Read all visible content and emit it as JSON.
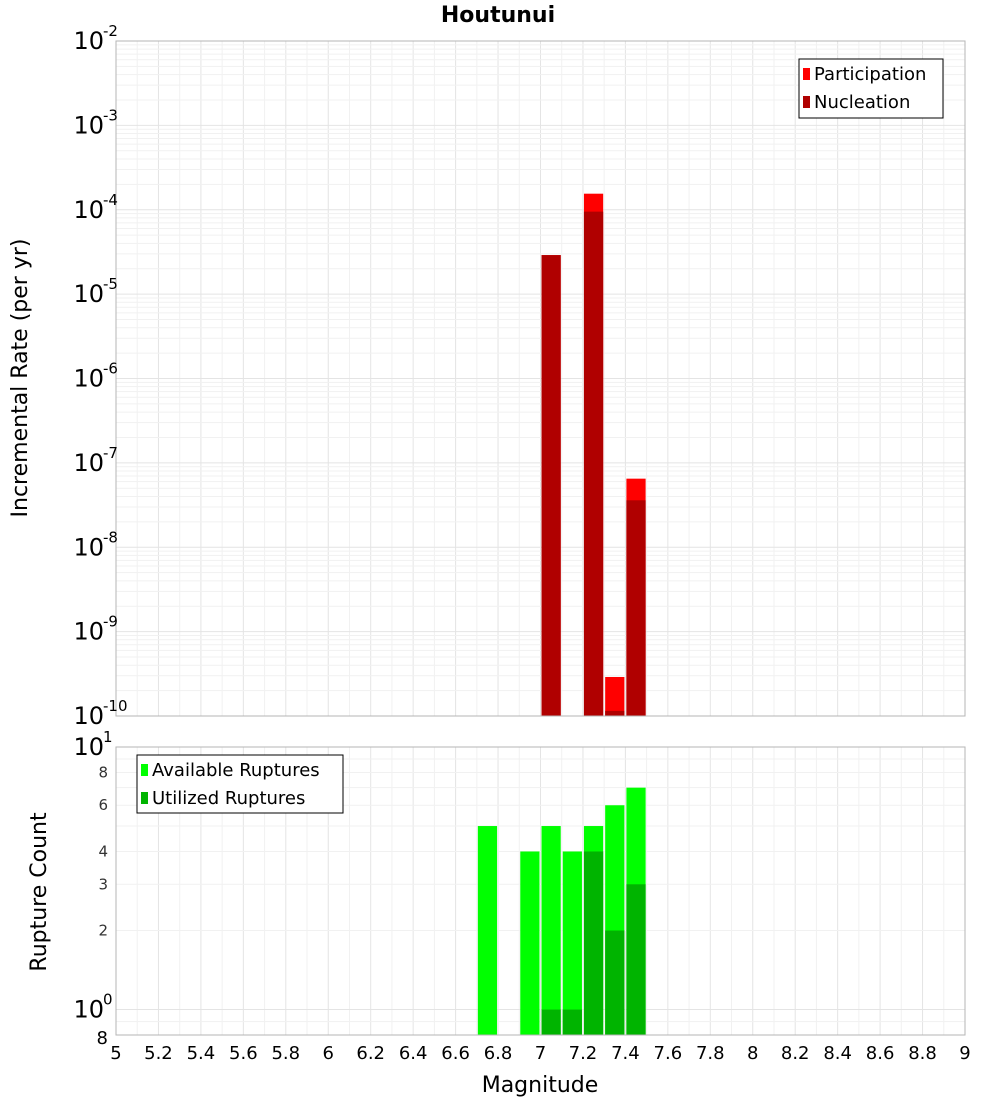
{
  "chart_data": [
    {
      "type": "bar",
      "title": "Houtunui",
      "ylabel": "Incremental Rate (per yr)",
      "xlabel": "",
      "xlim": [
        5,
        9
      ],
      "ylim": [
        1e-10,
        0.01
      ],
      "yscale": "log",
      "grid": true,
      "legend_position": "top-right",
      "x_bin_centers": [
        7.05,
        7.25,
        7.35,
        7.45
      ],
      "series": [
        {
          "name": "Participation",
          "color": "#ff0000",
          "values": [
            2.9e-05,
            0.000155,
            2.9e-10,
            6.5e-08
          ]
        },
        {
          "name": "Nucleation",
          "color": "#b00000",
          "values": [
            2.9e-05,
            9.5e-05,
            1.15e-10,
            3.6e-08
          ]
        }
      ],
      "y_major_ticks": [
        {
          "v": 0.01,
          "base": "10",
          "exp": "-2"
        },
        {
          "v": 0.001,
          "base": "10",
          "exp": "-3"
        },
        {
          "v": 0.0001,
          "base": "10",
          "exp": "-4"
        },
        {
          "v": 1e-05,
          "base": "10",
          "exp": "-5"
        },
        {
          "v": 1e-06,
          "base": "10",
          "exp": "-6"
        },
        {
          "v": 1e-07,
          "base": "10",
          "exp": "-7"
        },
        {
          "v": 1e-08,
          "base": "10",
          "exp": "-8"
        },
        {
          "v": 1e-09,
          "base": "10",
          "exp": "-9"
        },
        {
          "v": 1e-10,
          "base": "10",
          "exp": "-10"
        }
      ]
    },
    {
      "type": "bar",
      "title": "",
      "ylabel": "Rupture Count",
      "xlabel": "Magnitude",
      "xlim": [
        5,
        9
      ],
      "ylim": [
        0.8,
        10
      ],
      "yscale": "log",
      "grid": true,
      "legend_position": "top-left",
      "x_bin_centers": [
        6.75,
        6.95,
        7.05,
        7.15,
        7.25,
        7.35,
        7.45
      ],
      "series": [
        {
          "name": "Available Ruptures",
          "color": "#00ff00",
          "values": [
            5,
            4,
            5,
            4,
            5,
            6,
            7
          ]
        },
        {
          "name": "Utilized Ruptures",
          "color": "#00b400",
          "values": [
            0,
            0,
            1,
            1,
            4,
            2,
            3
          ]
        }
      ],
      "y_major_ticks": [
        {
          "v": 10,
          "base": "10",
          "exp": "1"
        },
        {
          "v": 1,
          "base": "10",
          "exp": "0"
        }
      ],
      "y_minor_ticks": [
        {
          "v": 8,
          "label": "8"
        },
        {
          "v": 6,
          "label": "6"
        },
        {
          "v": 4,
          "label": "4"
        },
        {
          "v": 3,
          "label": "3"
        },
        {
          "v": 2,
          "label": "2"
        }
      ],
      "y_bottom_label": "8",
      "x_ticks": [
        "5",
        "5.2",
        "5.4",
        "5.6",
        "5.8",
        "6",
        "6.2",
        "6.4",
        "6.6",
        "6.8",
        "7",
        "7.2",
        "7.4",
        "7.6",
        "7.8",
        "8",
        "8.2",
        "8.4",
        "8.6",
        "8.8",
        "9"
      ]
    }
  ]
}
